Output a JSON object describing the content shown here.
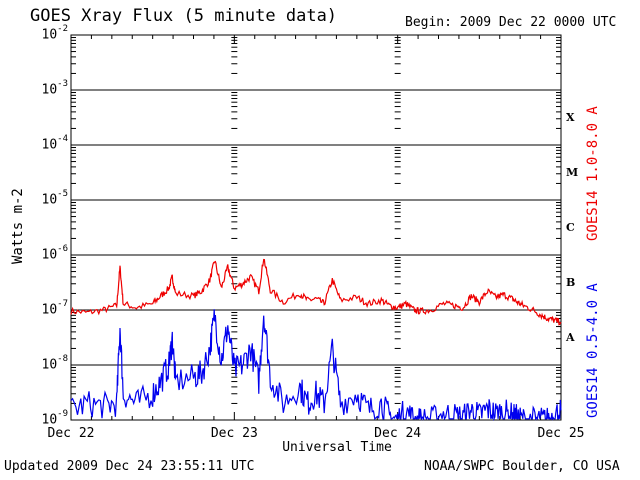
{
  "header": {
    "title": "GOES Xray Flux (5 minute data)",
    "begin": "Begin:  2009 Dec 22 0000 UTC"
  },
  "footer": {
    "updated": "Updated 2009 Dec 24 23:55:11 UTC",
    "credit": "NOAA/SWPC Boulder, CO USA"
  },
  "chart_data": {
    "type": "line",
    "title": "GOES Xray Flux (5 minute data)",
    "xlabel": "Universal Time",
    "ylabel": "Watts m-2",
    "yscale": "log",
    "ylim": [
      1e-09,
      0.01
    ],
    "xlim": [
      "Dec 22",
      "Dec 25"
    ],
    "x_ticks": [
      "Dec 22",
      "Dec 23",
      "Dec 24",
      "Dec 25"
    ],
    "y_ticks": [
      "10-9",
      "10-8",
      "10-7",
      "10-6",
      "10-5",
      "10-4",
      "10-3",
      "10-2"
    ],
    "flare_classes": [
      "X",
      "M",
      "C",
      "B",
      "A"
    ],
    "grid": true,
    "colors": {
      "long": "#ee0000",
      "short": "#0000ee"
    },
    "series": [
      {
        "name": "GOES14 1.0-8.0 A",
        "color": "#ee0000",
        "points": [
          [
            0.0,
            9.5e-08
          ],
          [
            0.1,
            9e-08
          ],
          [
            0.2,
            1e-07
          ],
          [
            0.28,
            1.2e-07
          ],
          [
            0.3,
            6e-07
          ],
          [
            0.32,
            1.3e-07
          ],
          [
            0.4,
            1.1e-07
          ],
          [
            0.5,
            1.3e-07
          ],
          [
            0.55,
            1.8e-07
          ],
          [
            0.6,
            2.5e-07
          ],
          [
            0.62,
            4e-07
          ],
          [
            0.64,
            2e-07
          ],
          [
            0.75,
            1.8e-07
          ],
          [
            0.8,
            2.2e-07
          ],
          [
            0.85,
            3.5e-07
          ],
          [
            0.88,
            8e-07
          ],
          [
            0.92,
            2.5e-07
          ],
          [
            0.96,
            6e-07
          ],
          [
            1.0,
            2.5e-07
          ],
          [
            1.05,
            3e-07
          ],
          [
            1.1,
            4e-07
          ],
          [
            1.15,
            2.2e-07
          ],
          [
            1.18,
            9e-07
          ],
          [
            1.22,
            2.3e-07
          ],
          [
            1.3,
            1.4e-07
          ],
          [
            1.4,
            2e-07
          ],
          [
            1.45,
            1.5e-07
          ],
          [
            1.5,
            1.6e-07
          ],
          [
            1.55,
            1.3e-07
          ],
          [
            1.6,
            3.5e-07
          ],
          [
            1.65,
            1.5e-07
          ],
          [
            1.75,
            1.7e-07
          ],
          [
            1.82,
            1.3e-07
          ],
          [
            1.9,
            1.5e-07
          ],
          [
            1.95,
            1.2e-07
          ],
          [
            2.0,
            1.1e-07
          ],
          [
            2.05,
            1.3e-07
          ],
          [
            2.1,
            1e-07
          ],
          [
            2.14,
            9.5e-08
          ],
          [
            2.2,
            1e-07
          ],
          [
            2.28,
            1.3e-07
          ],
          [
            2.35,
            1.2e-07
          ],
          [
            2.4,
            1.1e-07
          ],
          [
            2.45,
            1.8e-07
          ],
          [
            2.5,
            1.4e-07
          ],
          [
            2.55,
            2.2e-07
          ],
          [
            2.6,
            1.7e-07
          ],
          [
            2.65,
            1.9e-07
          ],
          [
            2.7,
            1.6e-07
          ],
          [
            2.73,
            1.4e-07
          ],
          [
            2.77,
            1.2e-07
          ],
          [
            2.83,
            1e-07
          ],
          [
            2.88,
            8e-08
          ],
          [
            2.92,
            7e-08
          ],
          [
            2.96,
            6.5e-08
          ],
          [
            3.0,
            6e-08
          ]
        ]
      },
      {
        "name": "GOES14 0.5-4.0 A",
        "color": "#0000ee",
        "points": [
          [
            0.0,
            1.5e-09
          ],
          [
            0.1,
            2e-09
          ],
          [
            0.2,
            1.8e-09
          ],
          [
            0.28,
            2e-09
          ],
          [
            0.3,
            5e-08
          ],
          [
            0.32,
            3e-09
          ],
          [
            0.4,
            2e-09
          ],
          [
            0.5,
            3e-09
          ],
          [
            0.55,
            5e-09
          ],
          [
            0.6,
            1e-08
          ],
          [
            0.62,
            3e-08
          ],
          [
            0.64,
            5e-09
          ],
          [
            0.75,
            6e-09
          ],
          [
            0.8,
            7e-09
          ],
          [
            0.85,
            2e-08
          ],
          [
            0.88,
            8e-08
          ],
          [
            0.92,
            1.2e-08
          ],
          [
            0.96,
            5e-08
          ],
          [
            1.0,
            8e-09
          ],
          [
            1.05,
            1e-08
          ],
          [
            1.1,
            2e-08
          ],
          [
            1.15,
            5e-09
          ],
          [
            1.18,
            9e-08
          ],
          [
            1.22,
            6e-09
          ],
          [
            1.3,
            2e-09
          ],
          [
            1.4,
            4e-09
          ],
          [
            1.45,
            2e-09
          ],
          [
            1.5,
            3e-09
          ],
          [
            1.55,
            2e-09
          ],
          [
            1.6,
            2e-08
          ],
          [
            1.65,
            2e-09
          ],
          [
            1.75,
            3e-09
          ],
          [
            1.82,
            1.5e-09
          ],
          [
            1.9,
            2e-09
          ],
          [
            1.95,
            1.2e-09
          ],
          [
            2.0,
            1e-09
          ],
          [
            2.05,
            1.5e-09
          ],
          [
            2.1,
            1e-09
          ],
          [
            2.14,
            1e-09
          ],
          [
            2.2,
            1e-09
          ],
          [
            2.28,
            1.3e-09
          ],
          [
            2.35,
            1.2e-09
          ],
          [
            2.4,
            1.1e-09
          ],
          [
            2.45,
            1.5e-09
          ],
          [
            2.5,
            1.2e-09
          ],
          [
            2.55,
            1.6e-09
          ],
          [
            2.6,
            1.3e-09
          ],
          [
            2.65,
            1.4e-09
          ],
          [
            2.7,
            1.2e-09
          ],
          [
            2.73,
            1.1e-09
          ],
          [
            2.77,
            1e-09
          ],
          [
            2.83,
            1e-09
          ],
          [
            2.88,
            1e-09
          ],
          [
            2.92,
            1e-09
          ],
          [
            2.96,
            1.2e-09
          ],
          [
            3.0,
            1.5e-09
          ]
        ]
      }
    ]
  }
}
